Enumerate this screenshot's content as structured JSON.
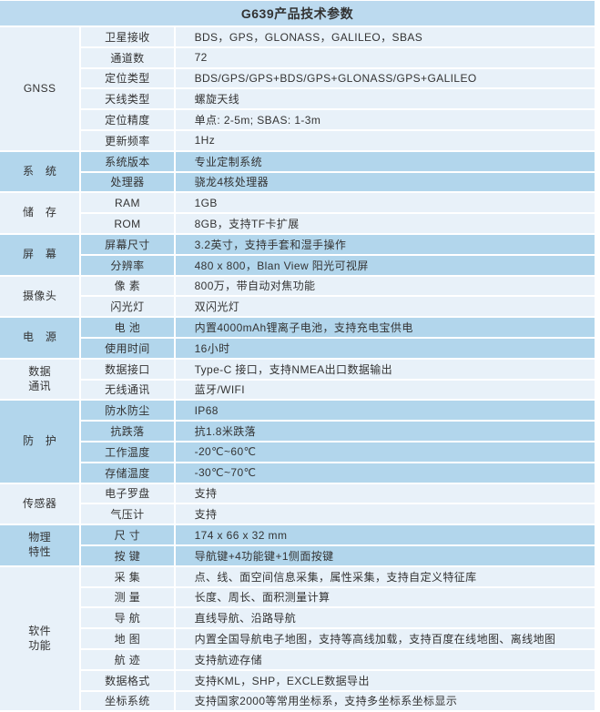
{
  "title": "G639产品技术参数",
  "colors": {
    "title_bar": "#bcdaef",
    "row_medium": "#b2d6ec",
    "row_light": "#e8f1f9",
    "text": "#333333",
    "grid_line": "#ffffff"
  },
  "groups": [
    {
      "category": "GNSS",
      "rows": [
        {
          "param": "卫星接收",
          "value": "BDS，GPS，GLONASS，GALILEO，SBAS"
        },
        {
          "param": "通道数",
          "value": "72"
        },
        {
          "param": "定位类型",
          "value": "BDS/GPS/GPS+BDS/GPS+GLONASS/GPS+GALILEO"
        },
        {
          "param": "天线类型",
          "value": "螺旋天线"
        },
        {
          "param": "定位精度",
          "value": "单点: 2-5m; SBAS: 1-3m"
        },
        {
          "param": "更新频率",
          "value": "1Hz"
        }
      ]
    },
    {
      "category": "系　统",
      "rows": [
        {
          "param": "系统版本",
          "value": "专业定制系统"
        },
        {
          "param": "处理器",
          "value": "骁龙4核处理器"
        }
      ]
    },
    {
      "category": "储　存",
      "rows": [
        {
          "param": "RAM",
          "value": "1GB"
        },
        {
          "param": "ROM",
          "value": "8GB，支持TF卡扩展"
        }
      ]
    },
    {
      "category": "屏　幕",
      "rows": [
        {
          "param": "屏幕尺寸",
          "value": "3.2英寸，支持手套和湿手操作"
        },
        {
          "param": "分辨率",
          "value": "480 x 800，Blan View 阳光可视屏"
        }
      ]
    },
    {
      "category": "摄像头",
      "rows": [
        {
          "param": "像 素",
          "value": "800万，带自动对焦功能"
        },
        {
          "param": "闪光灯",
          "value": "双闪光灯"
        }
      ]
    },
    {
      "category": "电　源",
      "rows": [
        {
          "param": "电 池",
          "value": "内置4000mAh锂离子电池，支持充电宝供电"
        },
        {
          "param": "使用时间",
          "value": "16小时"
        }
      ]
    },
    {
      "category": "数据\n通讯",
      "rows": [
        {
          "param": "数据接口",
          "value": "Type-C 接口，支持NMEA出口数据输出"
        },
        {
          "param": "无线通讯",
          "value": "蓝牙/WIFI"
        }
      ]
    },
    {
      "category": "防　护",
      "rows": [
        {
          "param": "防水防尘",
          "value": "IP68"
        },
        {
          "param": "抗跌落",
          "value": "抗1.8米跌落"
        },
        {
          "param": "工作温度",
          "value": "-20℃~60℃"
        },
        {
          "param": "存储温度",
          "value": "-30℃~70℃"
        }
      ]
    },
    {
      "category": "传感器",
      "rows": [
        {
          "param": "电子罗盘",
          "value": "支持"
        },
        {
          "param": "气压计",
          "value": "支持"
        }
      ]
    },
    {
      "category": "物理\n特性",
      "rows": [
        {
          "param": "尺 寸",
          "value": "174 x 66 x 32 mm"
        },
        {
          "param": "按 键",
          "value": "导航键+4功能键+1侧面按键"
        }
      ]
    },
    {
      "category": "软件\n功能",
      "rows": [
        {
          "param": "采 集",
          "value": "点、线、面空间信息采集，属性采集，支持自定义特征库"
        },
        {
          "param": "测 量",
          "value": "长度、周长、面积测量计算"
        },
        {
          "param": "导 航",
          "value": "直线导航、沿路导航"
        },
        {
          "param": "地 图",
          "value": "内置全国导航电子地图，支持等高线加载，支持百度在线地图、离线地图"
        },
        {
          "param": "航 迹",
          "value": "支持航迹存储"
        },
        {
          "param": "数据格式",
          "value": "支持KML，SHP，EXCLE数据导出"
        },
        {
          "param": "坐标系统",
          "value": "支持国家2000等常用坐标系，支持多坐标系坐标显示"
        }
      ]
    }
  ]
}
